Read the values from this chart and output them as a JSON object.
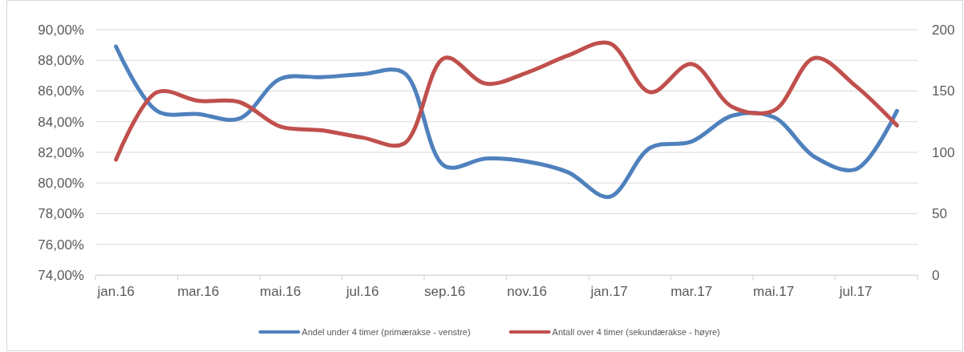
{
  "chart_data": {
    "type": "line",
    "categories": [
      "jan.16",
      null,
      "mar.16",
      null,
      "mai.16",
      null,
      "jul.16",
      null,
      "sep.16",
      null,
      "nov.16",
      null,
      "jan.17",
      null,
      "mar.17",
      null,
      "mai.17",
      null,
      "jul.17",
      null
    ],
    "series": [
      {
        "name": "Andel under 4 timer (primærakse - venstre)",
        "color": "#4f81bd",
        "values": [
          88.9,
          84.7,
          84.5,
          84.2,
          86.8,
          86.9,
          87.1,
          87.2,
          81.1,
          81.6,
          81.4,
          80.7,
          79.1,
          82.3,
          82.7,
          84.4,
          84.3,
          81.7,
          80.9,
          84.7
        ]
      },
      {
        "name": "Antall over 4 timer (sekundærakse - høyre)",
        "color": "#c0504d",
        "axis": "y2",
        "values": [
          94,
          149,
          142,
          141,
          121,
          118,
          112,
          107,
          177,
          156,
          165,
          179,
          189,
          149,
          172,
          137,
          134,
          177,
          154,
          122
        ]
      }
    ],
    "ylim": [
      74,
      90
    ],
    "yticks": [
      {
        "value": 74,
        "label": "74,00%"
      },
      {
        "value": 76,
        "label": "76,00%"
      },
      {
        "value": 78,
        "label": "78,00%"
      },
      {
        "value": 80,
        "label": "80,00%"
      },
      {
        "value": 82,
        "label": "82,00%"
      },
      {
        "value": 84,
        "label": "84,00%"
      },
      {
        "value": 86,
        "label": "86,00%"
      },
      {
        "value": 88,
        "label": "88,00%"
      },
      {
        "value": 90,
        "label": "90,00%"
      }
    ],
    "y2lim": [
      0,
      200
    ],
    "y2ticks": [
      0,
      50,
      100,
      150,
      200
    ],
    "grid": "y",
    "legend": "bottom",
    "marker": "none",
    "line_style": "solid"
  }
}
